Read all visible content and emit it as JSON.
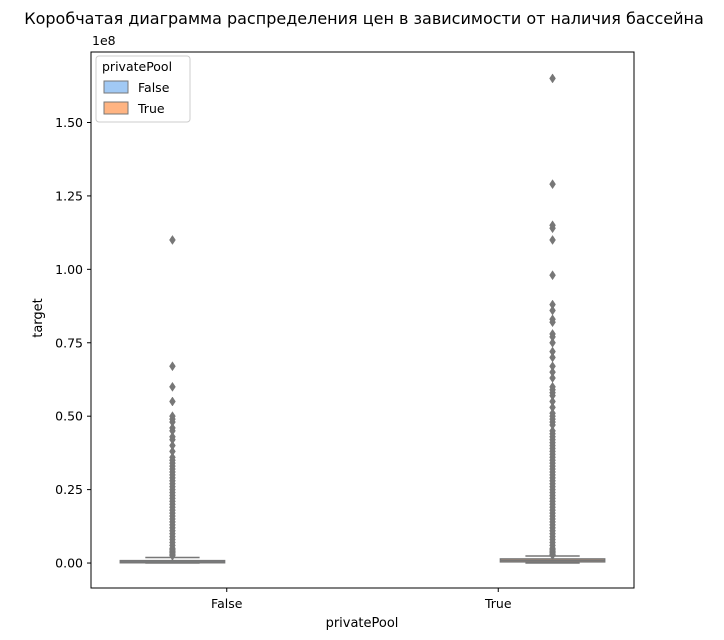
{
  "chart_data": {
    "type": "box",
    "title": "Коробчатая диаграмма распределения цен в зависимости от наличия бассейна",
    "xlabel": "privatePool",
    "ylabel": "target",
    "y_offset_label": "1e8",
    "y_scale": 100000000,
    "ylim": [
      -8500000,
      174000000
    ],
    "yticks": [
      0,
      25000000,
      50000000,
      75000000,
      100000000,
      125000000,
      150000000
    ],
    "ytick_labels": [
      "0.00",
      "0.25",
      "0.50",
      "0.75",
      "1.00",
      "1.25",
      "1.50"
    ],
    "categories": [
      "False",
      "True"
    ],
    "legend": {
      "title": "privatePool",
      "placement": "upper-left",
      "entries": [
        {
          "label": "False",
          "color": "#a1c9f4"
        },
        {
          "label": "True",
          "color": "#ffb482"
        }
      ]
    },
    "series": [
      {
        "name": "False",
        "color": "#a1c9f4",
        "category": "False",
        "q1": 100000,
        "median": 380000,
        "q3": 820000,
        "whisker_low": 0,
        "whisker_high": 1900000,
        "outliers": [
          110000000,
          67000000,
          60000000,
          55000000,
          50000000,
          49000000,
          48000000,
          46000000,
          45000000,
          43000000,
          42000000,
          40000000,
          38000000,
          36000000,
          35000000,
          34000000,
          33000000,
          32000000,
          31000000,
          30000000,
          29000000,
          28000000,
          27000000,
          26000000,
          25000000,
          24000000,
          23000000,
          22000000,
          21000000,
          20000000,
          19000000,
          18000000,
          17000000,
          16000000,
          15000000,
          14000000,
          13000000,
          12000000,
          11000000,
          10000000,
          9000000,
          8000000,
          7000000,
          6000000,
          5000000,
          4500000,
          4000000,
          3500000,
          3000000,
          2500000
        ]
      },
      {
        "name": "True",
        "color": "#ffb482",
        "category": "True",
        "q1": 400000,
        "median": 850000,
        "q3": 1400000,
        "whisker_low": 0,
        "whisker_high": 2400000,
        "outliers": [
          165000000,
          129000000,
          115000000,
          114000000,
          110000000,
          98000000,
          88000000,
          86000000,
          83000000,
          82000000,
          78000000,
          77000000,
          75000000,
          72000000,
          70000000,
          67000000,
          65000000,
          63000000,
          60000000,
          59000000,
          58000000,
          57000000,
          55000000,
          53000000,
          51000000,
          50000000,
          49000000,
          48000000,
          47000000,
          45000000,
          44000000,
          43000000,
          42000000,
          41000000,
          40000000,
          39000000,
          38000000,
          37000000,
          36000000,
          35000000,
          34000000,
          33000000,
          32000000,
          31000000,
          30000000,
          29000000,
          28000000,
          27000000,
          26000000,
          25000000,
          24000000,
          23000000,
          22000000,
          21000000,
          20000000,
          19000000,
          18000000,
          17000000,
          16000000,
          15000000,
          14000000,
          13000000,
          12000000,
          11000000,
          10000000,
          9000000,
          8000000,
          7000000,
          6000000,
          5000000,
          4500000,
          4000000,
          3500000,
          3000000,
          2700000
        ]
      }
    ]
  }
}
